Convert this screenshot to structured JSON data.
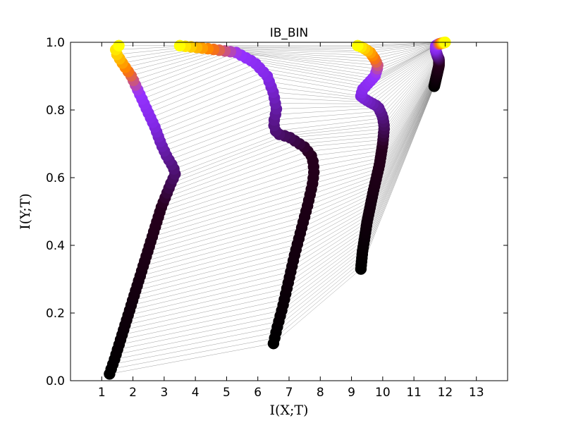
{
  "chart_data": {
    "type": "scatter",
    "title": "IB_BIN",
    "xlabel": "I(X;T)",
    "ylabel": "I(Y;T)",
    "xlim": [
      0,
      14
    ],
    "ylim": [
      0,
      1.0
    ],
    "xticks": [
      "1",
      "2",
      "3",
      "4",
      "5",
      "6",
      "7",
      "8",
      "9",
      "10",
      "11",
      "12",
      "13"
    ],
    "yticks": [
      "0.0",
      "0.2",
      "0.4",
      "0.6",
      "0.8",
      "1.0"
    ],
    "grid": false,
    "legend": "none",
    "colormap": "gnuplot (black → purple → orange → yellow, by epoch)",
    "colors": {
      "early": "#000000",
      "mid": "#8a2be2",
      "late_orange": "#ff8c00",
      "end": "#ffff00",
      "connector_lines": "#808080"
    },
    "series": [
      {
        "x": [
          1.25,
          1.4,
          1.6,
          1.8,
          2.0,
          2.3,
          2.6,
          2.9,
          3.2,
          3.35,
          3.3,
          3.1,
          2.9,
          2.7,
          2.45,
          2.2,
          1.95,
          1.65,
          1.45,
          1.45,
          1.55
        ],
        "y": [
          0.02,
          0.06,
          0.12,
          0.18,
          0.24,
          0.33,
          0.42,
          0.51,
          0.58,
          0.61,
          0.63,
          0.66,
          0.7,
          0.75,
          0.8,
          0.85,
          0.9,
          0.94,
          0.97,
          0.98,
          0.99
        ]
      },
      {
        "x": [
          6.5,
          6.6,
          6.8,
          7.0,
          7.2,
          7.4,
          7.6,
          7.75,
          7.8,
          7.75,
          7.5,
          7.0,
          6.6,
          6.5,
          6.6,
          6.5,
          6.3,
          5.9,
          5.3,
          4.5,
          3.5
        ],
        "y": [
          0.11,
          0.15,
          0.22,
          0.3,
          0.38,
          0.45,
          0.52,
          0.58,
          0.62,
          0.66,
          0.69,
          0.72,
          0.73,
          0.76,
          0.8,
          0.85,
          0.9,
          0.94,
          0.97,
          0.98,
          0.99
        ]
      },
      {
        "x": [
          9.3,
          9.35,
          9.5,
          9.7,
          9.9,
          10.0,
          10.05,
          10.0,
          9.85,
          9.55,
          9.3,
          9.35,
          9.55,
          9.75,
          9.85,
          9.75,
          9.6,
          9.35,
          9.2
        ],
        "y": [
          0.33,
          0.38,
          0.47,
          0.56,
          0.64,
          0.7,
          0.75,
          0.78,
          0.81,
          0.825,
          0.84,
          0.86,
          0.88,
          0.9,
          0.93,
          0.95,
          0.97,
          0.985,
          0.99
        ]
      },
      {
        "x": [
          11.65,
          11.7,
          11.75,
          11.8,
          11.8,
          11.75,
          11.7,
          11.7,
          11.8,
          12.0
        ],
        "y": [
          0.87,
          0.89,
          0.91,
          0.93,
          0.95,
          0.96,
          0.975,
          0.99,
          0.995,
          1.0
        ]
      }
    ]
  }
}
